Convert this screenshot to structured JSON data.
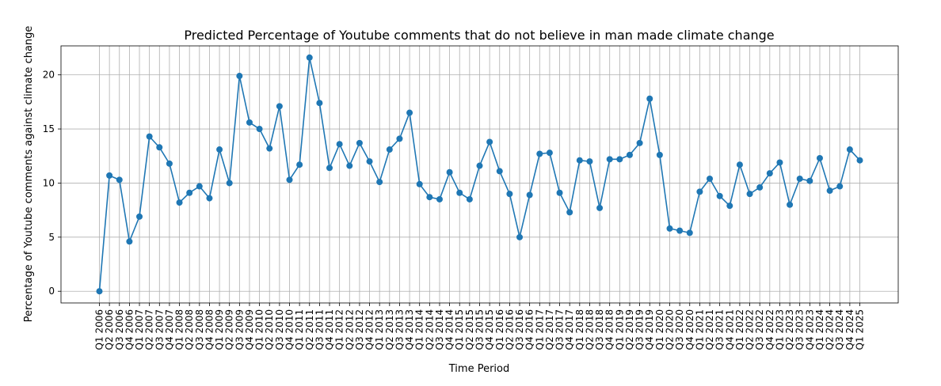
{
  "chart_data": {
    "type": "line",
    "title": "Predicted Percentage of Youtube comments that do not believe in man made climate change",
    "xlabel": "Time Period",
    "ylabel": "Percentage of Youtube comments against climate change",
    "ylim": [
      -1.08,
      22.68
    ],
    "yticks": [
      0,
      5,
      10,
      15,
      20
    ],
    "grid": true,
    "color": "#1f77b4",
    "marker": "circle",
    "categories": [
      "Q1 2006",
      "Q2 2006",
      "Q3 2006",
      "Q4 2006",
      "Q1 2007",
      "Q2 2007",
      "Q3 2007",
      "Q4 2007",
      "Q1 2008",
      "Q2 2008",
      "Q3 2008",
      "Q4 2008",
      "Q1 2009",
      "Q2 2009",
      "Q3 2009",
      "Q4 2009",
      "Q1 2010",
      "Q2 2010",
      "Q3 2010",
      "Q4 2010",
      "Q1 2011",
      "Q2 2011",
      "Q3 2011",
      "Q4 2011",
      "Q1 2012",
      "Q2 2012",
      "Q3 2012",
      "Q4 2012",
      "Q1 2013",
      "Q2 2013",
      "Q3 2013",
      "Q4 2013",
      "Q1 2014",
      "Q2 2014",
      "Q3 2014",
      "Q4 2014",
      "Q1 2015",
      "Q2 2015",
      "Q3 2015",
      "Q4 2015",
      "Q1 2016",
      "Q2 2016",
      "Q3 2016",
      "Q4 2016",
      "Q1 2017",
      "Q2 2017",
      "Q3 2017",
      "Q4 2017",
      "Q1 2018",
      "Q2 2018",
      "Q3 2018",
      "Q4 2018",
      "Q1 2019",
      "Q2 2019",
      "Q3 2019",
      "Q4 2019",
      "Q1 2020",
      "Q2 2020",
      "Q3 2020",
      "Q4 2020",
      "Q1 2021",
      "Q2 2021",
      "Q3 2021",
      "Q4 2021",
      "Q1 2022",
      "Q2 2022",
      "Q3 2022",
      "Q4 2022",
      "Q1 2023",
      "Q2 2023",
      "Q3 2023",
      "Q4 2023",
      "Q1 2024",
      "Q2 2024",
      "Q3 2024",
      "Q4 2024",
      "Q1 2025"
    ],
    "values": [
      0.0,
      10.7,
      10.3,
      4.6,
      6.9,
      14.3,
      13.3,
      11.8,
      8.2,
      9.1,
      9.7,
      8.6,
      13.1,
      10.0,
      19.9,
      15.6,
      15.0,
      13.2,
      17.1,
      10.3,
      11.7,
      21.6,
      17.4,
      11.4,
      13.6,
      11.6,
      13.7,
      12.0,
      10.1,
      13.1,
      14.1,
      16.5,
      9.9,
      8.7,
      8.5,
      11.0,
      9.1,
      8.5,
      11.6,
      13.8,
      11.1,
      9.0,
      5.0,
      8.9,
      12.7,
      12.8,
      9.1,
      7.3,
      12.1,
      12.0,
      7.7,
      12.2,
      12.2,
      12.6,
      13.7,
      17.8,
      12.6,
      5.8,
      5.6,
      5.4,
      9.2,
      10.4,
      8.8,
      7.9,
      11.7,
      9.0,
      9.6,
      10.9,
      11.9,
      8.0,
      10.4,
      10.2,
      12.3,
      9.3,
      9.7,
      13.1,
      12.1
    ]
  }
}
